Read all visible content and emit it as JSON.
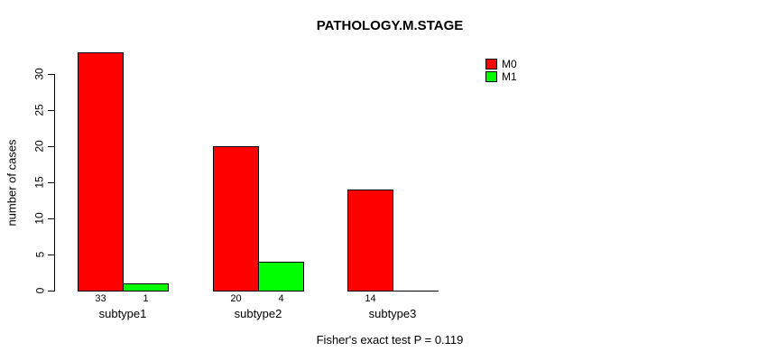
{
  "chart_data": {
    "type": "bar",
    "title": "PATHOLOGY.M.STAGE",
    "categories": [
      "subtype1",
      "subtype2",
      "subtype3"
    ],
    "series": [
      {
        "name": "M0",
        "color": "#ff0000",
        "values": [
          33,
          20,
          14
        ]
      },
      {
        "name": "M1",
        "color": "#00ff00",
        "values": [
          1,
          4,
          0
        ]
      }
    ],
    "bar_value_labels": [
      [
        "33",
        "20",
        "14"
      ],
      [
        "1",
        "4",
        ""
      ]
    ],
    "xlabel": "",
    "ylabel": "number of cases",
    "yticks": [
      0,
      5,
      10,
      15,
      20,
      25,
      30
    ],
    "ylim": [
      0,
      33
    ],
    "grid": false,
    "legend_position": "right",
    "annotation": "Fisher's exact test P = 0.119"
  },
  "legend": {
    "items": [
      {
        "label": "M0",
        "color": "#ff0000"
      },
      {
        "label": "M1",
        "color": "#00ff00"
      }
    ]
  },
  "colors": {
    "axis": "#000000",
    "background": "#ffffff",
    "m0": "#ff0000",
    "m1": "#00ff00"
  }
}
